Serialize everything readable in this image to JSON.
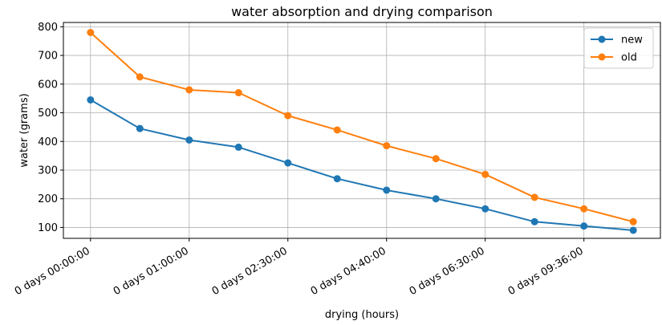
{
  "chart_data": {
    "type": "line",
    "title": "water absorption and drying comparison",
    "xlabel": "drying (hours)",
    "ylabel": "water (grams)",
    "ylim": [
      62,
      815
    ],
    "yticks": [
      100,
      200,
      300,
      400,
      500,
      600,
      700,
      800
    ],
    "x_tick_labels": [
      "0 days 00:00:00",
      "0 days 01:00:00",
      "0 days 02:30:00",
      "0 days 04:40:00",
      "0 days 06:30:00",
      "0 days 09:36:00"
    ],
    "x_tick_positions": [
      0,
      2,
      4,
      6,
      8,
      10
    ],
    "x": [
      0,
      1,
      2,
      3,
      4,
      5,
      6,
      7,
      8,
      9,
      10,
      11
    ],
    "xlim": [
      -0.55,
      11.55
    ],
    "grid": true,
    "legend_position": "top-right",
    "series": [
      {
        "name": "new",
        "color": "#1f77b4",
        "values": [
          545,
          445,
          405,
          380,
          325,
          270,
          230,
          200,
          165,
          120,
          105,
          90
        ]
      },
      {
        "name": "old",
        "color": "#ff7f0e",
        "values": [
          780,
          625,
          580,
          570,
          490,
          440,
          385,
          340,
          285,
          205,
          165,
          120
        ]
      }
    ]
  }
}
